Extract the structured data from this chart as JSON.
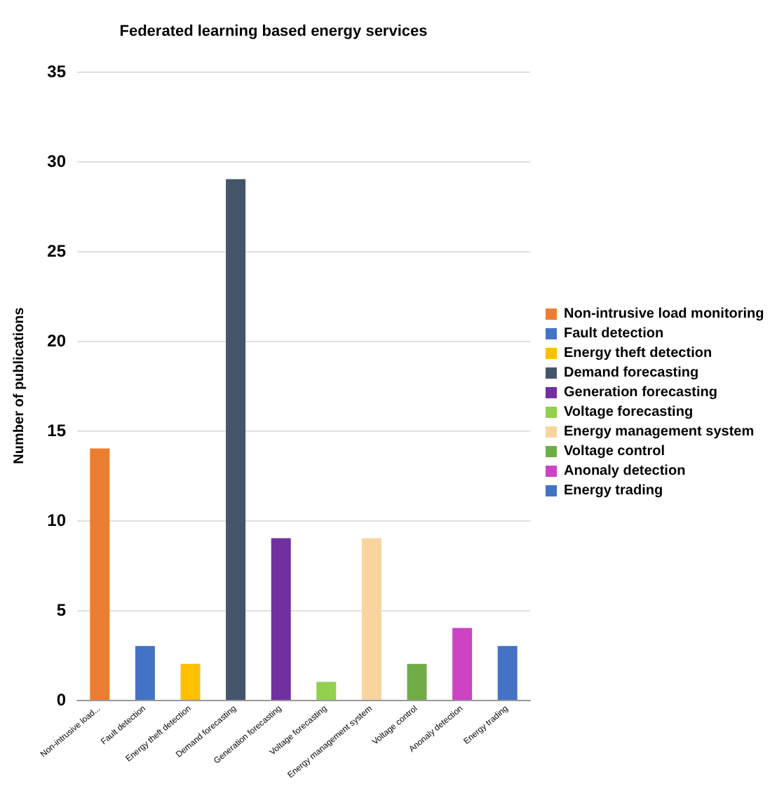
{
  "chart_data": {
    "type": "bar",
    "title": "Federated learning based energy services",
    "ylabel": "Number of publications",
    "categories": [
      "Non-intrusive load...",
      "Fault detection",
      "Energy theft detection",
      "Demand forecasting",
      "Generation forecasting",
      "Voltage forecasting",
      "Energy management system",
      "Voltage control",
      "Anonaly detection",
      "Energy trading"
    ],
    "series": [
      {
        "name": "Non-intrusive load monitoring",
        "color": "#ed7d31",
        "values": [
          14,
          null,
          null,
          null,
          null,
          null,
          null,
          null,
          null,
          null
        ]
      },
      {
        "name": "Fault detection",
        "color": "#4472c4",
        "values": [
          null,
          3,
          null,
          null,
          null,
          null,
          null,
          null,
          null,
          null
        ]
      },
      {
        "name": "Energy theft detection",
        "color": "#ffc000",
        "values": [
          null,
          null,
          2,
          null,
          null,
          null,
          null,
          null,
          null,
          null
        ]
      },
      {
        "name": "Demand forecasting",
        "color": "#44546a",
        "values": [
          null,
          null,
          null,
          29,
          null,
          null,
          null,
          null,
          null,
          null
        ]
      },
      {
        "name": "Generation forecasting",
        "color": "#7030a0",
        "values": [
          null,
          null,
          null,
          null,
          9,
          null,
          null,
          null,
          null,
          null
        ]
      },
      {
        "name": "Voltage forecasting",
        "color": "#92d050",
        "values": [
          null,
          null,
          null,
          null,
          null,
          1,
          null,
          null,
          null,
          null
        ]
      },
      {
        "name": "Energy management system",
        "color": "#f8d5a0",
        "values": [
          null,
          null,
          null,
          null,
          null,
          null,
          9,
          null,
          null,
          null
        ]
      },
      {
        "name": "Voltage control",
        "color": "#70ad47",
        "values": [
          null,
          null,
          null,
          null,
          null,
          null,
          null,
          2,
          null,
          null
        ]
      },
      {
        "name": "Anonaly detection",
        "color": "#cc44c4",
        "values": [
          null,
          null,
          null,
          null,
          null,
          null,
          null,
          null,
          4,
          null
        ]
      },
      {
        "name": "Energy trading",
        "color": "#4472c4",
        "values": [
          null,
          null,
          null,
          null,
          null,
          null,
          null,
          null,
          null,
          3
        ]
      }
    ],
    "ylim": [
      0,
      35
    ],
    "yticks": [
      0,
      5,
      10,
      15,
      20,
      25,
      30,
      35
    ],
    "grid": "y",
    "legend": "right"
  }
}
